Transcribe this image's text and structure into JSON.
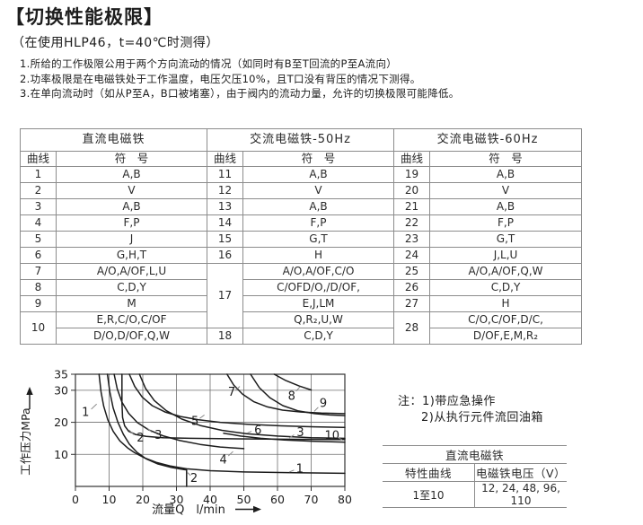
{
  "page": {
    "title": "【切换性能极限】",
    "subtitle": "（在使用HLP46，t=40℃时测得）",
    "notes": [
      "1.所给的工作极限公用于两个方向流动的情况（如同时有B至T回流的P至A流向）",
      "2.功率极限是在电磁铁处于工作温度，电压欠压10%，且T口没有背压的情况下测得。",
      "3.在单向流动时（如从P至A，B口被堵塞），由于阀内的流动力量，允许的切换极限可能降低。"
    ]
  },
  "main_table": {
    "groups": [
      {
        "header": "直流电磁铁",
        "cols": [
          "曲线",
          "符　号"
        ],
        "rows": [
          {
            "no": "1",
            "symbols": [
              "A,B"
            ]
          },
          {
            "no": "2",
            "symbols": [
              "V"
            ]
          },
          {
            "no": "3",
            "symbols": [
              "A,B"
            ]
          },
          {
            "no": "4",
            "symbols": [
              "F,P"
            ]
          },
          {
            "no": "5",
            "symbols": [
              "J"
            ]
          },
          {
            "no": "6",
            "symbols": [
              "G,H,T"
            ]
          },
          {
            "no": "7",
            "symbols": [
              "A/O,A/OF,L,U"
            ]
          },
          {
            "no": "8",
            "symbols": [
              "C,D,Y"
            ]
          },
          {
            "no": "9",
            "symbols": [
              "M"
            ]
          },
          {
            "no": "10",
            "symbols": [
              "E,R,C/O,C/OF",
              "D/O,D/OF,Q,W"
            ]
          }
        ]
      },
      {
        "header": "交流电磁铁-50Hz",
        "cols": [
          "曲线",
          "符　号"
        ],
        "rows": [
          {
            "no": "11",
            "symbols": [
              "A,B"
            ]
          },
          {
            "no": "12",
            "symbols": [
              "V"
            ]
          },
          {
            "no": "13",
            "symbols": [
              "A,B"
            ]
          },
          {
            "no": "14",
            "symbols": [
              "F,P"
            ]
          },
          {
            "no": "15",
            "symbols": [
              "G,T"
            ]
          },
          {
            "no": "16",
            "symbols": [
              "H"
            ]
          },
          {
            "no": "17",
            "symbols": [
              "A/O,A/OF,C/O",
              "C/OFD/O,/D/OF,",
              "E,J,LM",
              "Q,R₂,U,W"
            ]
          },
          {
            "no": "18",
            "symbols": [
              "C,D,Y"
            ]
          }
        ]
      },
      {
        "header": "交流电磁铁-60Hz",
        "cols": [
          "曲线",
          "符　号"
        ],
        "rows": [
          {
            "no": "19",
            "symbols": [
              "A,B"
            ]
          },
          {
            "no": "20",
            "symbols": [
              "V"
            ]
          },
          {
            "no": "21",
            "symbols": [
              "A,B"
            ]
          },
          {
            "no": "22",
            "symbols": [
              "F,P"
            ]
          },
          {
            "no": "23",
            "symbols": [
              "G,T"
            ]
          },
          {
            "no": "24",
            "symbols": [
              "J,L,U"
            ]
          },
          {
            "no": "25",
            "symbols": [
              "A/O,A/OF,Q,W"
            ]
          },
          {
            "no": "26",
            "symbols": [
              "C,D,Y"
            ]
          },
          {
            "no": "27",
            "symbols": [
              "H"
            ]
          },
          {
            "no": "28",
            "symbols": [
              "C/O,C/OF,D/C,",
              "D/OF,E,M,R₂"
            ]
          }
        ]
      }
    ]
  },
  "chart_data": {
    "type": "line",
    "title": "",
    "xlabel": "流量Q　l/min",
    "ylabel": "工作压力MPa",
    "xlim": [
      0,
      80
    ],
    "ylim": [
      0,
      35
    ],
    "xticks": [
      0,
      10,
      20,
      30,
      40,
      50,
      60,
      70,
      80
    ],
    "yticks": [
      10,
      20,
      30,
      35
    ],
    "grid_x": [
      10,
      20,
      30,
      40,
      50,
      60,
      70
    ],
    "grid_y": [
      10,
      20,
      30
    ],
    "grid_on": true,
    "legend": "none",
    "series": [
      {
        "name": "1",
        "points": [
          [
            7,
            35
          ],
          [
            7.6,
            29.5
          ],
          [
            8.4,
            25
          ],
          [
            9.6,
            20.8
          ],
          [
            11.2,
            17.2
          ],
          [
            13.2,
            14.2
          ],
          [
            15.5,
            12
          ],
          [
            17.6,
            10.5
          ],
          [
            20.5,
            8.9
          ],
          [
            24,
            7.5
          ],
          [
            28,
            6.4
          ],
          [
            33,
            5.5
          ],
          [
            40,
            4.9
          ],
          [
            50,
            4.5
          ],
          [
            65,
            4.25
          ],
          [
            80,
            4.1
          ]
        ]
      },
      {
        "name": "2",
        "points": [
          [
            9.5,
            35
          ],
          [
            10.2,
            29.5
          ],
          [
            11.2,
            24.5
          ],
          [
            12.6,
            20
          ],
          [
            14.2,
            16.3
          ],
          [
            16,
            13.2
          ],
          [
            18.2,
            10.7
          ],
          [
            21,
            8.6
          ],
          [
            24.5,
            7
          ],
          [
            28.5,
            5.9
          ],
          [
            32,
            5.3
          ],
          [
            33,
            5.15
          ],
          [
            33,
            0
          ]
        ]
      },
      {
        "name": "3",
        "points": [
          [
            13.8,
            35
          ],
          [
            13.8,
            26
          ],
          [
            14,
            21.5
          ],
          [
            14.6,
            18.9
          ],
          [
            15.8,
            17.2
          ],
          [
            17.8,
            16.2
          ],
          [
            21,
            15.6
          ],
          [
            26,
            15.2
          ],
          [
            34,
            15
          ],
          [
            48,
            14.85
          ],
          [
            65,
            14.7
          ],
          [
            80,
            14.65
          ]
        ]
      },
      {
        "name": "4",
        "points": [
          [
            11.5,
            35
          ],
          [
            12.4,
            30.5
          ],
          [
            13.8,
            26.3
          ],
          [
            15.8,
            22.8
          ],
          [
            18.4,
            19.9
          ],
          [
            21.8,
            17.6
          ],
          [
            26,
            15.8
          ],
          [
            31,
            14.3
          ],
          [
            37,
            13.1
          ],
          [
            43,
            12.3
          ],
          [
            50,
            11.8
          ]
        ]
      },
      {
        "name": "5",
        "points": [
          [
            16,
            35
          ],
          [
            17.6,
            31.2
          ],
          [
            19.8,
            27.9
          ],
          [
            22.8,
            25.2
          ],
          [
            26.6,
            23.2
          ],
          [
            31.2,
            21.8
          ],
          [
            36.6,
            20.8
          ],
          [
            43,
            20
          ],
          [
            51,
            19.4
          ],
          [
            61,
            18.9
          ],
          [
            71,
            18.6
          ],
          [
            80,
            18.4
          ]
        ]
      },
      {
        "name": "6",
        "points": [
          [
            19,
            35
          ],
          [
            20.8,
            30.6
          ],
          [
            23.4,
            26.8
          ],
          [
            27,
            23.6
          ],
          [
            31.6,
            21
          ],
          [
            37,
            19
          ],
          [
            43.5,
            17.5
          ],
          [
            51,
            16.4
          ],
          [
            60,
            15.7
          ],
          [
            70,
            15.2
          ],
          [
            80,
            15
          ]
        ]
      },
      {
        "name": "7",
        "points": [
          [
            45,
            35
          ],
          [
            47,
            31.6
          ],
          [
            49.6,
            28.8
          ],
          [
            53,
            26.4
          ],
          [
            57,
            24.8
          ],
          [
            61.5,
            23.8
          ],
          [
            67,
            23.2
          ],
          [
            73,
            22.9
          ],
          [
            80,
            22.7
          ]
        ]
      },
      {
        "name": "8",
        "points": [
          [
            59,
            35
          ],
          [
            62.5,
            33
          ],
          [
            66.5,
            31.3
          ],
          [
            70,
            30.1
          ]
        ]
      },
      {
        "name": "9",
        "points": [
          [
            52,
            35
          ],
          [
            54.6,
            30.8
          ],
          [
            57.8,
            27.6
          ],
          [
            61.6,
            25.2
          ],
          [
            66,
            23.6
          ],
          [
            71,
            22.7
          ],
          [
            75.5,
            22.3
          ],
          [
            80,
            22.1
          ]
        ]
      },
      {
        "name": "10",
        "points": [
          [
            44,
            16.6
          ],
          [
            49,
            15.7
          ],
          [
            55,
            15
          ],
          [
            62,
            14.5
          ],
          [
            70,
            14.1
          ],
          [
            80,
            13.8
          ]
        ]
      }
    ],
    "labels": [
      {
        "text": "1",
        "x": 3.0,
        "y": 23.2,
        "leader": [
          4.7,
          24.1,
          6.3,
          25.7
        ]
      },
      {
        "text": "2",
        "x": 19.3,
        "y": 15.2,
        "leader": [
          17.4,
          16.1,
          15.9,
          17.6
        ]
      },
      {
        "text": "3",
        "x": 24.6,
        "y": 16.1,
        "leader": [
          22.7,
          16.9,
          21.3,
          18.2
        ]
      },
      {
        "text": "5",
        "x": 35.5,
        "y": 20.5,
        "leader": [
          36.9,
          21.2,
          38.3,
          22.3
        ]
      },
      {
        "text": "7",
        "x": 46.4,
        "y": 29.5,
        "leader": [
          47.6,
          30.1,
          48.8,
          31.2
        ]
      },
      {
        "text": "8",
        "x": 64.2,
        "y": 28.3,
        "leader": [
          65.5,
          29.7,
          66.7,
          31.1
        ]
      },
      {
        "text": "9",
        "x": 73.6,
        "y": 26.0,
        "leader": [
          72.1,
          24.7,
          70.9,
          23.4
        ]
      },
      {
        "text": "6",
        "x": 54.2,
        "y": 17.6,
        "leader": [
          52.3,
          17.2,
          50.9,
          16.6
        ]
      },
      {
        "text": "3",
        "x": 66.8,
        "y": 17.0,
        "leader": [
          64.9,
          16.1,
          63.5,
          15.1
        ]
      },
      {
        "text": "10",
        "x": 76.2,
        "y": 15.9,
        "leader": [
          77.9,
          15.3,
          79.2,
          14.5
        ]
      },
      {
        "text": "4",
        "x": 43.9,
        "y": 8.4,
        "leader": [
          45.4,
          9.5,
          46.8,
          10.9
        ]
      },
      {
        "text": "1",
        "x": 66.6,
        "y": 5.6,
        "leader": [
          64.9,
          5.1,
          63.5,
          4.5
        ]
      },
      {
        "text": "2",
        "x": 35.2,
        "y": 2.7,
        "leader": [
          34.2,
          3.4,
          33.3,
          4.3
        ]
      }
    ],
    "colors": {
      "curve": "#1c1c1c",
      "grid": "#6f6f6f",
      "frame": "#333333",
      "label": "#1d1d1d",
      "leader": "#888888"
    }
  },
  "side_note": {
    "label": "注：",
    "line1": "1)带应急操作",
    "line2": "2)从执行元件流回油箱"
  },
  "voltage_table": {
    "header": "直流电磁铁",
    "col1": "特性曲线",
    "col2": "电磁铁电压（V）",
    "row_curve": "1至10",
    "row_voltages": "12, 24, 48, 96, 110"
  }
}
